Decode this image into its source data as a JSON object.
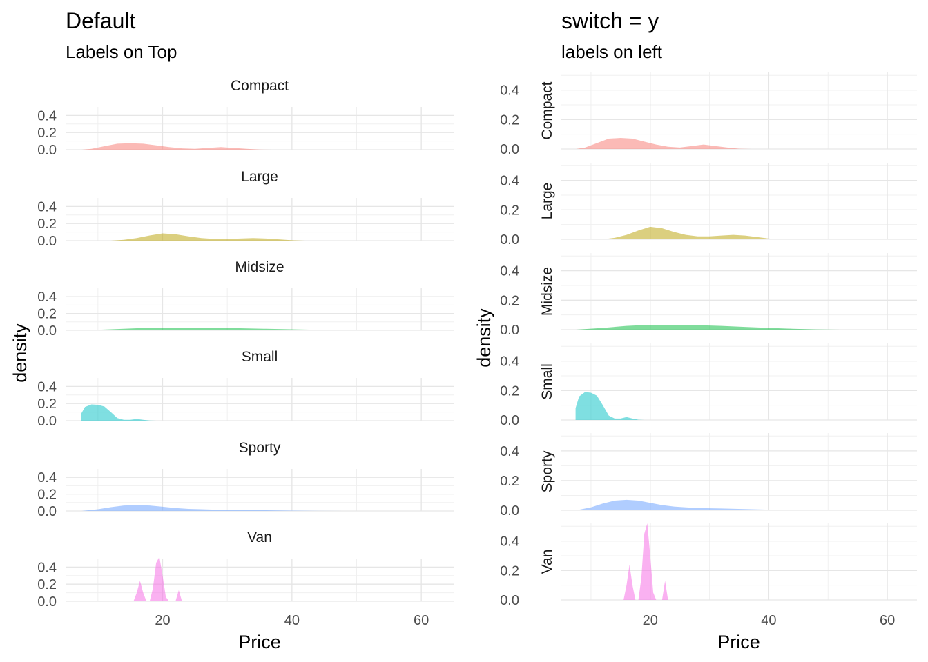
{
  "chart_data": [
    {
      "type": "area",
      "title": "Default",
      "subtitle": "Labels on Top",
      "facet_label_position": "top",
      "xlabel": "Price",
      "ylabel": "density",
      "xlim": [
        5,
        65
      ],
      "ylim": [
        0,
        0.5
      ],
      "x_ticks": [
        20,
        40,
        60
      ],
      "y_ticks": [
        0.0,
        0.2,
        0.4
      ],
      "y_tick_labels": [
        "0.0",
        "0.2",
        "0.4"
      ],
      "grid": true,
      "fill_alpha": 0.5,
      "panels": [
        {
          "name": "Compact",
          "color": "#F8766D",
          "x": [
            7.5,
            9,
            11,
            13,
            15,
            17,
            19,
            21,
            23,
            25,
            27,
            29,
            31,
            33,
            35,
            37
          ],
          "y": [
            0.0,
            0.01,
            0.04,
            0.07,
            0.075,
            0.07,
            0.05,
            0.03,
            0.015,
            0.01,
            0.02,
            0.03,
            0.02,
            0.01,
            0.002,
            0.0
          ]
        },
        {
          "name": "Large",
          "color": "#B79F00",
          "x": [
            12,
            14,
            16,
            18,
            20,
            22,
            24,
            26,
            28,
            30,
            32,
            34,
            36,
            38,
            40,
            42
          ],
          "y": [
            0.0,
            0.01,
            0.03,
            0.06,
            0.085,
            0.075,
            0.05,
            0.03,
            0.02,
            0.02,
            0.025,
            0.03,
            0.025,
            0.015,
            0.005,
            0.0
          ]
        },
        {
          "name": "Midsize",
          "color": "#00BA38",
          "x": [
            7.5,
            12,
            16,
            20,
            24,
            28,
            32,
            36,
            40,
            44,
            48,
            52
          ],
          "y": [
            0.0,
            0.012,
            0.025,
            0.033,
            0.033,
            0.03,
            0.025,
            0.018,
            0.012,
            0.006,
            0.002,
            0.0
          ]
        },
        {
          "name": "Small",
          "color": "#00BFC4",
          "x": [
            7.4,
            7.4,
            8,
            9,
            10,
            11,
            12,
            13,
            14,
            15,
            16,
            17,
            18,
            19
          ],
          "y": [
            0.0,
            0.08,
            0.16,
            0.19,
            0.185,
            0.165,
            0.1,
            0.03,
            0.01,
            0.01,
            0.02,
            0.01,
            0.002,
            0.0
          ]
        },
        {
          "name": "Sporty",
          "color": "#619CFF",
          "x": [
            7.5,
            10,
            12,
            14,
            16,
            18,
            20,
            22,
            24,
            26,
            28,
            32,
            36,
            40,
            44,
            48
          ],
          "y": [
            0.0,
            0.02,
            0.045,
            0.065,
            0.07,
            0.065,
            0.05,
            0.035,
            0.025,
            0.02,
            0.015,
            0.012,
            0.008,
            0.004,
            0.001,
            0.0
          ]
        },
        {
          "name": "Van",
          "color": "#F564E3",
          "x": [
            15.5,
            16,
            16.5,
            17,
            17.5,
            18,
            18.5,
            19,
            19.5,
            20,
            20.5,
            21,
            22,
            22.5,
            23,
            23.5
          ],
          "y": [
            0.0,
            0.1,
            0.24,
            0.1,
            0.0,
            0.0,
            0.15,
            0.45,
            0.52,
            0.3,
            0.05,
            0.0,
            0.0,
            0.13,
            0.0,
            0.0
          ]
        }
      ]
    },
    {
      "type": "area",
      "title": "switch = y",
      "subtitle": "labels on left",
      "facet_label_position": "left",
      "xlabel": "Price",
      "ylabel": "density",
      "xlim": [
        5,
        65
      ],
      "ylim": [
        0,
        0.52
      ],
      "x_ticks": [
        20,
        40,
        60
      ],
      "y_ticks": [
        0.0,
        0.2,
        0.4
      ],
      "y_tick_labels": [
        "0.0",
        "0.2",
        "0.4"
      ],
      "grid": true,
      "fill_alpha": 0.5,
      "panels": [
        {
          "name": "Compact",
          "color": "#F8766D",
          "x": [
            7.5,
            9,
            11,
            13,
            15,
            17,
            19,
            21,
            23,
            25,
            27,
            29,
            31,
            33,
            35,
            37
          ],
          "y": [
            0.0,
            0.01,
            0.04,
            0.07,
            0.075,
            0.07,
            0.05,
            0.03,
            0.015,
            0.01,
            0.02,
            0.03,
            0.02,
            0.01,
            0.002,
            0.0
          ]
        },
        {
          "name": "Large",
          "color": "#B79F00",
          "x": [
            12,
            14,
            16,
            18,
            20,
            22,
            24,
            26,
            28,
            30,
            32,
            34,
            36,
            38,
            40,
            42
          ],
          "y": [
            0.0,
            0.01,
            0.03,
            0.06,
            0.085,
            0.075,
            0.05,
            0.03,
            0.02,
            0.02,
            0.025,
            0.03,
            0.025,
            0.015,
            0.005,
            0.0
          ]
        },
        {
          "name": "Midsize",
          "color": "#00BA38",
          "x": [
            7.5,
            12,
            16,
            20,
            24,
            28,
            32,
            36,
            40,
            44,
            48,
            52
          ],
          "y": [
            0.0,
            0.012,
            0.025,
            0.033,
            0.033,
            0.03,
            0.025,
            0.018,
            0.012,
            0.006,
            0.002,
            0.0
          ]
        },
        {
          "name": "Small",
          "color": "#00BFC4",
          "x": [
            7.4,
            7.4,
            8,
            9,
            10,
            11,
            12,
            13,
            14,
            15,
            16,
            17,
            18,
            19
          ],
          "y": [
            0.0,
            0.08,
            0.16,
            0.19,
            0.185,
            0.165,
            0.1,
            0.03,
            0.01,
            0.01,
            0.02,
            0.01,
            0.002,
            0.0
          ]
        },
        {
          "name": "Sporty",
          "color": "#619CFF",
          "x": [
            7.5,
            10,
            12,
            14,
            16,
            18,
            20,
            22,
            24,
            26,
            28,
            32,
            36,
            40,
            44,
            48
          ],
          "y": [
            0.0,
            0.02,
            0.045,
            0.065,
            0.07,
            0.065,
            0.05,
            0.035,
            0.025,
            0.02,
            0.015,
            0.012,
            0.008,
            0.004,
            0.001,
            0.0
          ]
        },
        {
          "name": "Van",
          "color": "#F564E3",
          "x": [
            15.5,
            16,
            16.5,
            17,
            17.5,
            18,
            18.5,
            19,
            19.5,
            20,
            20.5,
            21,
            22,
            22.5,
            23,
            23.5
          ],
          "y": [
            0.0,
            0.1,
            0.24,
            0.1,
            0.0,
            0.0,
            0.15,
            0.45,
            0.52,
            0.3,
            0.05,
            0.0,
            0.0,
            0.13,
            0.0,
            0.0
          ]
        }
      ]
    }
  ]
}
